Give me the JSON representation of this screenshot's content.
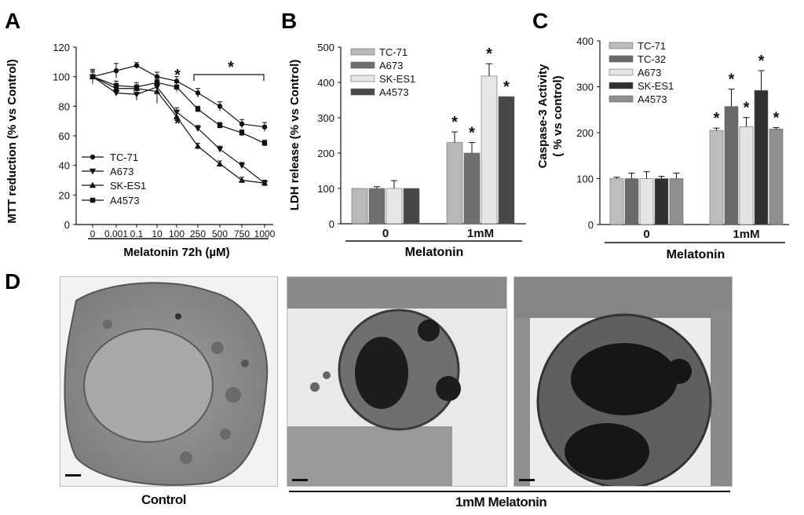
{
  "panels": {
    "a": {
      "letter": "A",
      "chart_data": {
        "type": "line",
        "ylabel": "MTT reduction (% vs Control)",
        "xlabel": "Melatonin 72h (µM)",
        "categories": [
          "0",
          "0.001",
          "0.1",
          "10",
          "100",
          "250",
          "500",
          "750",
          "1000"
        ],
        "ylim": [
          0,
          120
        ],
        "yticks": [
          0,
          20,
          40,
          60,
          80,
          100,
          120
        ],
        "legend_position": "bottom-left",
        "series": [
          {
            "name": "TC-71",
            "marker": "circle",
            "values": [
              100,
              104,
              107.5,
              100,
              97,
              89,
              80,
              68,
              66
            ],
            "errors": [
              4,
              5,
              2,
              3,
              3,
              3,
              3,
              3,
              3
            ]
          },
          {
            "name": "A673",
            "marker": "triangle-down",
            "values": [
              100,
              89,
              88,
              93,
              76,
              65,
              51,
              40,
              28
            ],
            "errors": [
              4,
              2,
              4,
              4,
              3,
              2,
              2,
              2,
              2
            ]
          },
          {
            "name": "SK-ES1",
            "marker": "triangle-up",
            "values": [
              100,
              92,
              92,
              90,
              73,
              53,
              41,
              30,
              28
            ],
            "errors": [
              3,
              2,
              2,
              8,
              4,
              2,
              2,
              2,
              2
            ]
          },
          {
            "name": "A4573",
            "marker": "square",
            "values": [
              100,
              94,
              93,
              96,
              93,
              78,
              67,
              62,
              55
            ],
            "errors": [
              5,
              3,
              3,
              3,
              3,
              2,
              2,
              2,
              2
            ]
          }
        ],
        "annotations": [
          {
            "text": "*",
            "at": "100 µM, above"
          },
          {
            "text": "*",
            "at": "100 µM, below"
          },
          {
            "text": "*",
            "at": "bracket 250-1000 µM"
          }
        ]
      }
    },
    "b": {
      "letter": "B",
      "chart_data": {
        "type": "bar",
        "ylabel": "LDH release (% vs Control)",
        "xlabel": "Melatonin",
        "categories": [
          "0",
          "1mM"
        ],
        "ylim": [
          0,
          500
        ],
        "yticks": [
          0,
          100,
          200,
          300,
          400,
          500
        ],
        "legend_position": "top-left",
        "series": [
          {
            "name": "TC-71",
            "color": "#b9b9b9",
            "values": [
              100,
              230
            ],
            "errors": [
              0,
              30
            ]
          },
          {
            "name": "A673",
            "color": "#6f6f6f",
            "values": [
              100,
              200
            ],
            "errors": [
              5,
              30
            ]
          },
          {
            "name": "SK-ES1",
            "color": "#e6e6e6",
            "values": [
              100,
              418
            ],
            "errors": [
              22,
              35
            ]
          },
          {
            "name": "A4573",
            "color": "#474747",
            "values": [
              100,
              360
            ],
            "errors": [
              0,
              0
            ]
          }
        ],
        "significance": [
          [
            false,
            true
          ],
          [
            false,
            true
          ],
          [
            false,
            true
          ],
          [
            false,
            true
          ]
        ],
        "sig_mark": "*"
      }
    },
    "c": {
      "letter": "C",
      "chart_data": {
        "type": "bar",
        "ylabel": "Caspase-3 Activity",
        "ylabel2": "( % vs control)",
        "xlabel": "Melatonin",
        "categories": [
          "0",
          "1mM"
        ],
        "ylim": [
          0,
          400
        ],
        "yticks": [
          0,
          100,
          200,
          300,
          400
        ],
        "legend_position": "top-left",
        "series": [
          {
            "name": "TC-71",
            "color": "#bdbdbd",
            "values": [
              100,
              205
            ],
            "errors": [
              3,
              5
            ]
          },
          {
            "name": "TC-32",
            "color": "#6a6a6a",
            "values": [
              100,
              257
            ],
            "errors": [
              12,
              38
            ]
          },
          {
            "name": "A673",
            "color": "#e4e4e4",
            "values": [
              100,
              213
            ],
            "errors": [
              15,
              20
            ]
          },
          {
            "name": "SK-ES1",
            "color": "#303030",
            "values": [
              100,
              292
            ],
            "errors": [
              5,
              43
            ]
          },
          {
            "name": "A4573",
            "color": "#8f8f8f",
            "values": [
              100,
              208
            ],
            "errors": [
              12,
              3
            ]
          }
        ],
        "significance": [
          [
            false,
            true
          ],
          [
            false,
            true
          ],
          [
            false,
            true
          ],
          [
            false,
            true
          ],
          [
            false,
            true
          ]
        ],
        "sig_mark": "*"
      }
    },
    "d": {
      "letter": "D",
      "images": [
        {
          "name": "control",
          "label": "Control"
        },
        {
          "name": "melatonin-1",
          "label": ""
        },
        {
          "name": "melatonin-2",
          "label": ""
        }
      ],
      "group_label": "1mM Melatonin"
    }
  },
  "colors": {
    "ink": "#111111",
    "micrograph_bg": "#e8e8e8"
  }
}
